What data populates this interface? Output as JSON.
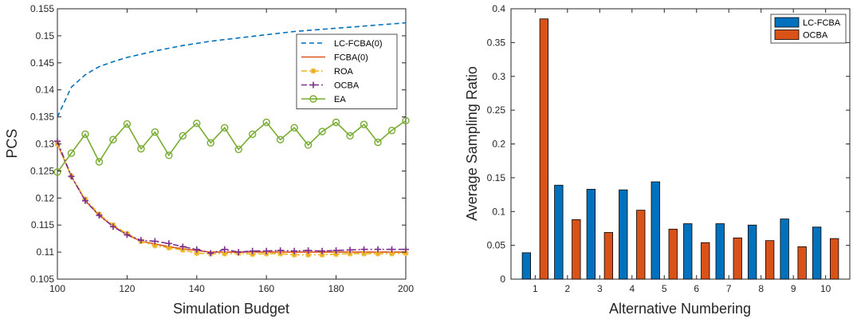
{
  "chart_data": [
    {
      "type": "line",
      "title": "",
      "xlabel": "Simulation Budget",
      "ylabel": "PCS",
      "xlim": [
        100,
        200
      ],
      "ylim": [
        0.105,
        0.155
      ],
      "xticks": [
        100,
        120,
        140,
        160,
        180,
        200
      ],
      "yticks": [
        0.105,
        0.11,
        0.115,
        0.12,
        0.125,
        0.13,
        0.135,
        0.14,
        0.145,
        0.15,
        0.155
      ],
      "xtick_labels": [
        "100",
        "120",
        "140",
        "160",
        "180",
        "200"
      ],
      "ytick_labels": [
        "0.105",
        "0.11",
        "0.115",
        "0.12",
        "0.125",
        "0.13",
        "0.135",
        "0.14",
        "0.145",
        "0.15",
        "0.155"
      ],
      "grid": false,
      "legend_position": "top-right",
      "x": [
        100,
        104,
        108,
        112,
        116,
        120,
        124,
        128,
        132,
        136,
        140,
        144,
        148,
        152,
        156,
        160,
        164,
        168,
        172,
        176,
        180,
        184,
        188,
        192,
        196,
        200
      ],
      "series": [
        {
          "name": "LC-FCBA(0)",
          "color": "#0072BD",
          "style": "dashed",
          "marker": "none",
          "values": [
            0.135,
            0.1405,
            0.1428,
            0.1443,
            0.1452,
            0.146,
            0.1466,
            0.1472,
            0.1477,
            0.1482,
            0.1486,
            0.149,
            0.1493,
            0.1496,
            0.1499,
            0.1502,
            0.1505,
            0.1508,
            0.151,
            0.1512,
            0.1514,
            0.1516,
            0.1518,
            0.152,
            0.1522,
            0.1524
          ]
        },
        {
          "name": "FCBA(0)",
          "color": "#D95319",
          "style": "solid",
          "marker": "none",
          "values": [
            0.13,
            0.124,
            0.1195,
            0.1168,
            0.1148,
            0.1132,
            0.112,
            0.1115,
            0.111,
            0.1106,
            0.1103,
            0.11,
            0.11,
            0.11,
            0.11,
            0.11,
            0.11,
            0.11,
            0.11,
            0.11,
            0.11,
            0.11,
            0.11,
            0.11,
            0.11,
            0.11
          ]
        },
        {
          "name": "ROA",
          "color": "#EDB120",
          "style": "dashdot",
          "marker": "asterisk",
          "values": [
            0.13,
            0.124,
            0.1198,
            0.117,
            0.115,
            0.1134,
            0.112,
            0.1112,
            0.1108,
            0.1104,
            0.1098,
            0.1097,
            0.1097,
            0.1098,
            0.1096,
            0.1097,
            0.1097,
            0.1095,
            0.1095,
            0.1095,
            0.1096,
            0.1097,
            0.1097,
            0.1097,
            0.1097,
            0.1098
          ]
        },
        {
          "name": "OCBA",
          "color": "#7E2F8E",
          "style": "dashdot",
          "marker": "plus",
          "values": [
            0.1305,
            0.124,
            0.1195,
            0.1168,
            0.1147,
            0.1132,
            0.1122,
            0.112,
            0.1116,
            0.111,
            0.1105,
            0.1098,
            0.1105,
            0.11,
            0.1102,
            0.1102,
            0.1103,
            0.1102,
            0.1103,
            0.1102,
            0.1103,
            0.1104,
            0.1105,
            0.1105,
            0.1105,
            0.1105
          ]
        },
        {
          "name": "EA",
          "color": "#77AC30",
          "style": "solid",
          "marker": "circle",
          "values": [
            0.1248,
            0.1283,
            0.1318,
            0.1267,
            0.1308,
            0.1337,
            0.1291,
            0.1322,
            0.1279,
            0.1315,
            0.1338,
            0.1302,
            0.133,
            0.129,
            0.1318,
            0.134,
            0.1308,
            0.133,
            0.1298,
            0.1323,
            0.134,
            0.1315,
            0.1336,
            0.1303,
            0.1325,
            0.1343
          ]
        }
      ]
    },
    {
      "type": "bar",
      "title": "",
      "xlabel": "Alternative Numbering",
      "ylabel": "Average Sampling Ratio",
      "ylim": [
        0,
        0.4
      ],
      "categories": [
        "1",
        "2",
        "3",
        "4",
        "5",
        "6",
        "7",
        "8",
        "9",
        "10"
      ],
      "yticks": [
        0,
        0.05,
        0.1,
        0.15,
        0.2,
        0.25,
        0.3,
        0.35,
        0.4
      ],
      "ytick_labels": [
        "0",
        "0.05",
        "0.1",
        "0.15",
        "0.2",
        "0.25",
        "0.3",
        "0.35",
        "0.4"
      ],
      "grid": false,
      "legend_position": "top-right",
      "series": [
        {
          "name": "LC-FCBA",
          "color": "#0072BD",
          "values": [
            0.039,
            0.139,
            0.133,
            0.132,
            0.144,
            0.082,
            0.082,
            0.08,
            0.089,
            0.077
          ]
        },
        {
          "name": "OCBA",
          "color": "#D95319",
          "values": [
            0.385,
            0.088,
            0.069,
            0.102,
            0.074,
            0.054,
            0.061,
            0.057,
            0.048,
            0.06
          ]
        }
      ]
    }
  ]
}
